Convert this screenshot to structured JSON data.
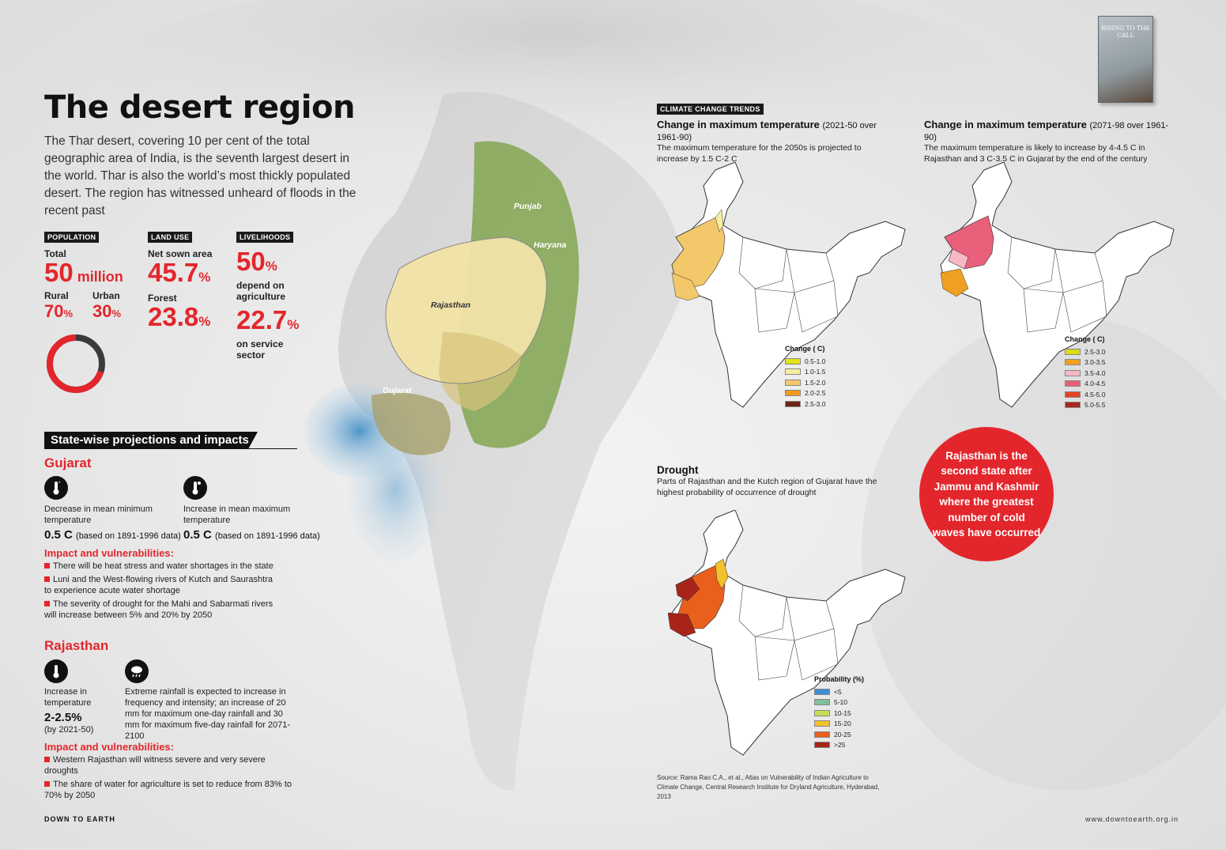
{
  "header": {
    "title": "The desert region",
    "intro": "The Thar desert, covering 10 per cent of the total geographic area of India, is the seventh largest desert in the world. Thar is also the world’s most thickly populated desert. The region has witnessed unheard of floods in the recent past"
  },
  "population": {
    "tag": "POPULATION",
    "total_label": "Total",
    "total_value": "50",
    "total_unit": "million",
    "rural_label": "Rural",
    "rural_value": "70",
    "urban_label": "Urban",
    "urban_value": "30",
    "pct": "%",
    "rural_fraction": 0.7,
    "urban_fraction": 0.3
  },
  "land_use": {
    "tag": "LAND USE",
    "net_sown_label": "Net sown area",
    "net_sown_value": "45.7",
    "forest_label": "Forest",
    "forest_value": "23.8",
    "pct": "%"
  },
  "livelihoods": {
    "tag": "LIVELIHOODS",
    "agri_value": "50",
    "agri_label": "depend on agriculture",
    "service_value": "22.7",
    "service_label": "on service sector",
    "pct": "%"
  },
  "map_labels": {
    "punjab": "Punjab",
    "haryana": "Haryana",
    "rajasthan": "Rajasthan",
    "gujarat": "Gujarat"
  },
  "projections": {
    "section_title": "State-wise projections and impacts",
    "gujarat": {
      "name": "Gujarat",
      "min_desc": "Decrease in mean minimum temperature",
      "min_value": "0.5 C",
      "min_note": "(based on 1891-1996 data)",
      "max_desc": "Increase in mean maximum temperature",
      "max_value": "0.5 C",
      "max_note": "(based on 1891-1996 data)",
      "impact_title": "Impact and vulnerabilities:",
      "impacts": [
        "There will be heat stress and water shortages in the state",
        "Luni and the West-flowing rivers of Kutch and Saurashtra to experience acute water shortage",
        "The severity of drought for the Mahi and Sabarmati rivers will increase between 5% and 20% by 2050"
      ]
    },
    "rajasthan": {
      "name": "Rajasthan",
      "temp_desc": "Increase in temperature",
      "temp_value": "2-2.5%",
      "temp_note": "(by 2021-50)",
      "rain_desc": "Extreme rainfall is expected to increase in frequency and intensity; an increase of 20 mm for maximum one-day rainfall and 30 mm for maximum five-day rainfall for 2071-2100",
      "impact_title": "Impact and vulnerabilities:",
      "impacts": [
        "Western Rajasthan will witness severe and very severe droughts",
        "The share of water for agriculture is set to reduce from 83% to 70% by 2050"
      ]
    }
  },
  "climate": {
    "tag": "CLIMATE CHANGE TRENDS",
    "map1": {
      "title": "Change in maximum temperature",
      "period": "(2021-50 over 1961-90)",
      "desc": "The maximum temperature for the 2050s is projected to increase by 1.5 C-2 C",
      "legend_title": "Change ( C)",
      "legend": [
        {
          "label": "0.5-1.0",
          "color": "#e4e41a"
        },
        {
          "label": "1.0-1.5",
          "color": "#f6eea0"
        },
        {
          "label": "1.5-2.0",
          "color": "#f3c86a"
        },
        {
          "label": "2.0-2.5",
          "color": "#f09a1c"
        },
        {
          "label": "2.5-3.0",
          "color": "#6e2416"
        }
      ]
    },
    "map2": {
      "title": "Change in maximum temperature",
      "period": "(2071-98 over 1961-90)",
      "desc": "The maximum temperature is likely to increase by 4-4.5 C in Rajasthan and 3 C-3.5 C in Gujarat by the end of the century",
      "legend_title": "Change ( C)",
      "legend": [
        {
          "label": "2.5-3.0",
          "color": "#dbdb14"
        },
        {
          "label": "3.0-3.5",
          "color": "#f0a020"
        },
        {
          "label": "3.5-4.0",
          "color": "#f6b8c4"
        },
        {
          "label": "4.0-4.5",
          "color": "#e8607a"
        },
        {
          "label": "4.5-5.0",
          "color": "#e34524"
        },
        {
          "label": "5.0-5.5",
          "color": "#a8261e"
        }
      ]
    },
    "map3": {
      "title": "Drought",
      "desc": "Parts of Rajasthan and the Kutch region of Gujarat have the highest probability of occurrence of drought",
      "legend_title": "Probability (%)",
      "legend": [
        {
          "label": "<5",
          "color": "#3d8fd6"
        },
        {
          "label": "5-10",
          "color": "#7fbf9a"
        },
        {
          "label": "10-15",
          "color": "#c9dc58"
        },
        {
          "label": "15-20",
          "color": "#f2c12c"
        },
        {
          "label": "20-25",
          "color": "#e8601c"
        },
        {
          "label": ">25",
          "color": "#a82418"
        }
      ]
    },
    "source": "Source: Rama Rao C.A., et al., Atlas on Vulnerability of Indian Agriculture to Climate Change, Central Research Institute for Dryland Agriculture, Hyderabad, 2013"
  },
  "callout": "Rajasthan is the second state after Jammu and Kashmir where the greatest number of cold waves have occurred",
  "book": {
    "title": "RISING TO THE CALL"
  },
  "footer": {
    "brand": "DOWN TO EARTH",
    "url": "www.downtoearth.org.in"
  },
  "colors": {
    "accent": "#e3262c",
    "ink": "#111111",
    "desert": "#f2e3a8",
    "green": "#6f9a3a",
    "sea": "#5a9cc9"
  }
}
